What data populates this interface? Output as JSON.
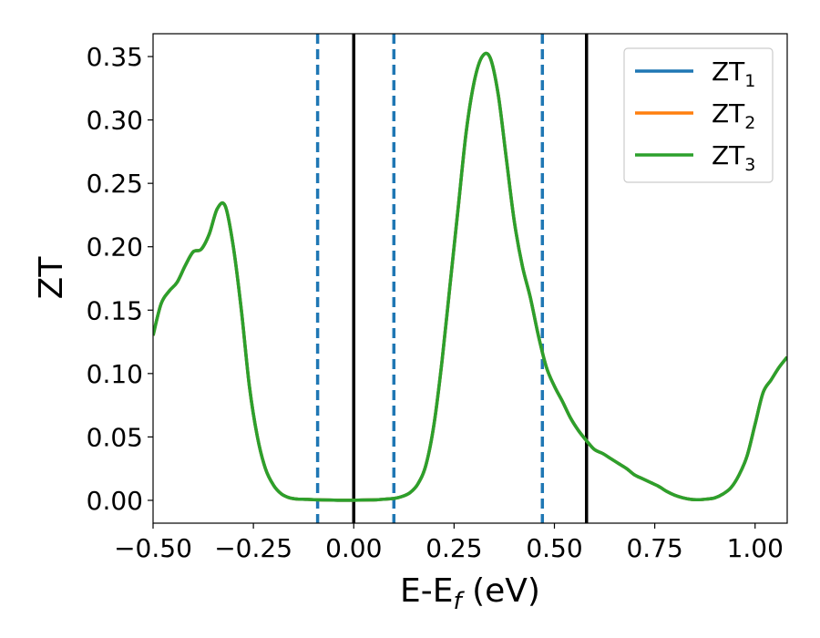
{
  "chart_data": {
    "type": "line",
    "xlabel": "E-E",
    "xlabel_sub": "f",
    "xlabel_unit": " (eV)",
    "ylabel": "ZT",
    "xlim": [
      -0.5,
      1.08
    ],
    "ylim": [
      -0.018,
      0.368
    ],
    "x_ticks": [
      -0.5,
      -0.25,
      0.0,
      0.25,
      0.5,
      0.75,
      1.0
    ],
    "x_tick_labels": [
      "−0.50",
      "−0.25",
      "0.00",
      "0.25",
      "0.50",
      "0.75",
      "1.00"
    ],
    "y_ticks": [
      0.0,
      0.05,
      0.1,
      0.15,
      0.2,
      0.25,
      0.3,
      0.35
    ],
    "y_tick_labels": [
      "0.00",
      "0.05",
      "0.10",
      "0.15",
      "0.20",
      "0.25",
      "0.30",
      "0.35"
    ],
    "grid": false,
    "legend_position": "top-right",
    "series": [
      {
        "name": "ZT",
        "name_sub": "1",
        "color": "#1f77b4"
      },
      {
        "name": "ZT",
        "name_sub": "2",
        "color": "#ff7f0e"
      },
      {
        "name": "ZT",
        "name_sub": "3",
        "color": "#2ca02c"
      }
    ],
    "curve": {
      "x": [
        -0.5,
        -0.48,
        -0.46,
        -0.44,
        -0.42,
        -0.4,
        -0.38,
        -0.36,
        -0.34,
        -0.32,
        -0.3,
        -0.28,
        -0.26,
        -0.24,
        -0.22,
        -0.2,
        -0.18,
        -0.16,
        -0.14,
        -0.12,
        -0.1,
        -0.08,
        -0.06,
        -0.04,
        -0.02,
        0.0,
        0.02,
        0.04,
        0.06,
        0.08,
        0.1,
        0.12,
        0.14,
        0.16,
        0.18,
        0.2,
        0.22,
        0.24,
        0.26,
        0.28,
        0.3,
        0.32,
        0.34,
        0.36,
        0.38,
        0.4,
        0.42,
        0.44,
        0.46,
        0.48,
        0.5,
        0.52,
        0.54,
        0.56,
        0.58,
        0.6,
        0.62,
        0.64,
        0.66,
        0.68,
        0.7,
        0.72,
        0.74,
        0.76,
        0.78,
        0.8,
        0.82,
        0.84,
        0.86,
        0.88,
        0.9,
        0.92,
        0.94,
        0.96,
        0.98,
        1.0,
        1.02,
        1.04,
        1.06,
        1.08
      ],
      "y": [
        0.13,
        0.155,
        0.165,
        0.172,
        0.185,
        0.196,
        0.198,
        0.21,
        0.23,
        0.232,
        0.2,
        0.15,
        0.09,
        0.05,
        0.025,
        0.012,
        0.005,
        0.002,
        0.001,
        0.0008,
        0.0005,
        0.0003,
        0.0002,
        0.0001,
        0.0001,
        0.0001,
        0.0002,
        0.0003,
        0.0005,
        0.001,
        0.0015,
        0.003,
        0.006,
        0.013,
        0.028,
        0.06,
        0.11,
        0.17,
        0.23,
        0.29,
        0.33,
        0.35,
        0.349,
        0.32,
        0.27,
        0.22,
        0.185,
        0.16,
        0.13,
        0.105,
        0.09,
        0.078,
        0.065,
        0.055,
        0.047,
        0.04,
        0.037,
        0.033,
        0.029,
        0.025,
        0.02,
        0.017,
        0.014,
        0.011,
        0.007,
        0.004,
        0.002,
        0.0008,
        0.0005,
        0.001,
        0.002,
        0.005,
        0.01,
        0.02,
        0.035,
        0.06,
        0.085,
        0.095,
        0.105,
        0.113
      ]
    },
    "vlines": [
      {
        "x": -0.09,
        "style": "dashed",
        "color": "#1f77b4"
      },
      {
        "x": 0.0,
        "style": "solid",
        "color": "#000000"
      },
      {
        "x": 0.1,
        "style": "dashed",
        "color": "#1f77b4"
      },
      {
        "x": 0.47,
        "style": "dashed",
        "color": "#1f77b4"
      },
      {
        "x": 0.58,
        "style": "solid",
        "color": "#000000"
      }
    ]
  }
}
